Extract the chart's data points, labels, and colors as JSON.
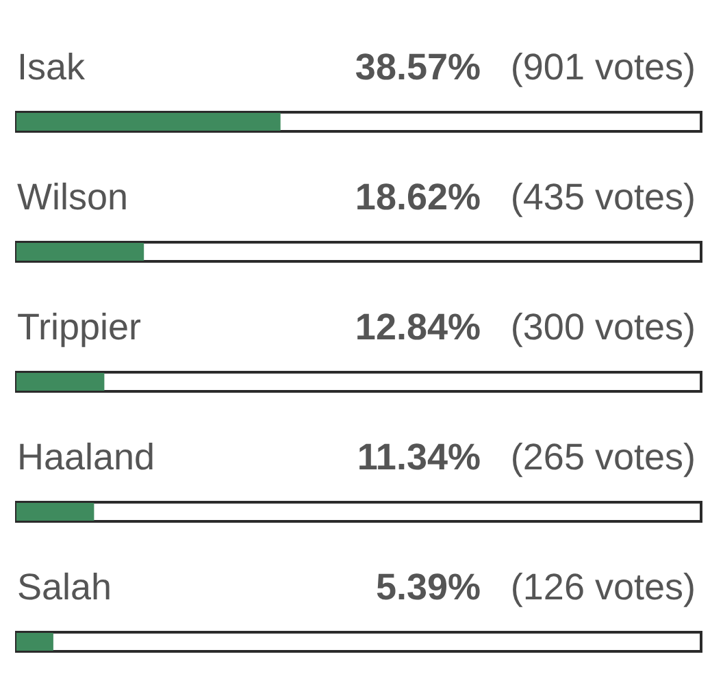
{
  "chart_data": {
    "type": "bar",
    "orientation": "horizontal",
    "categories": [
      "Isak",
      "Wilson",
      "Trippier",
      "Haaland",
      "Salah"
    ],
    "values": [
      38.57,
      18.62,
      12.84,
      11.34,
      5.39
    ],
    "value_labels": [
      "38.57%",
      "18.62%",
      "12.84%",
      "11.34%",
      "5.39%"
    ],
    "color": "#3f8b5e",
    "xlim": [
      0,
      100
    ],
    "tick_labels": "y",
    "annotations": [
      "(901 votes)",
      "(435 votes)",
      "(300 votes)",
      "(265 votes)",
      "(126 votes)"
    ]
  }
}
